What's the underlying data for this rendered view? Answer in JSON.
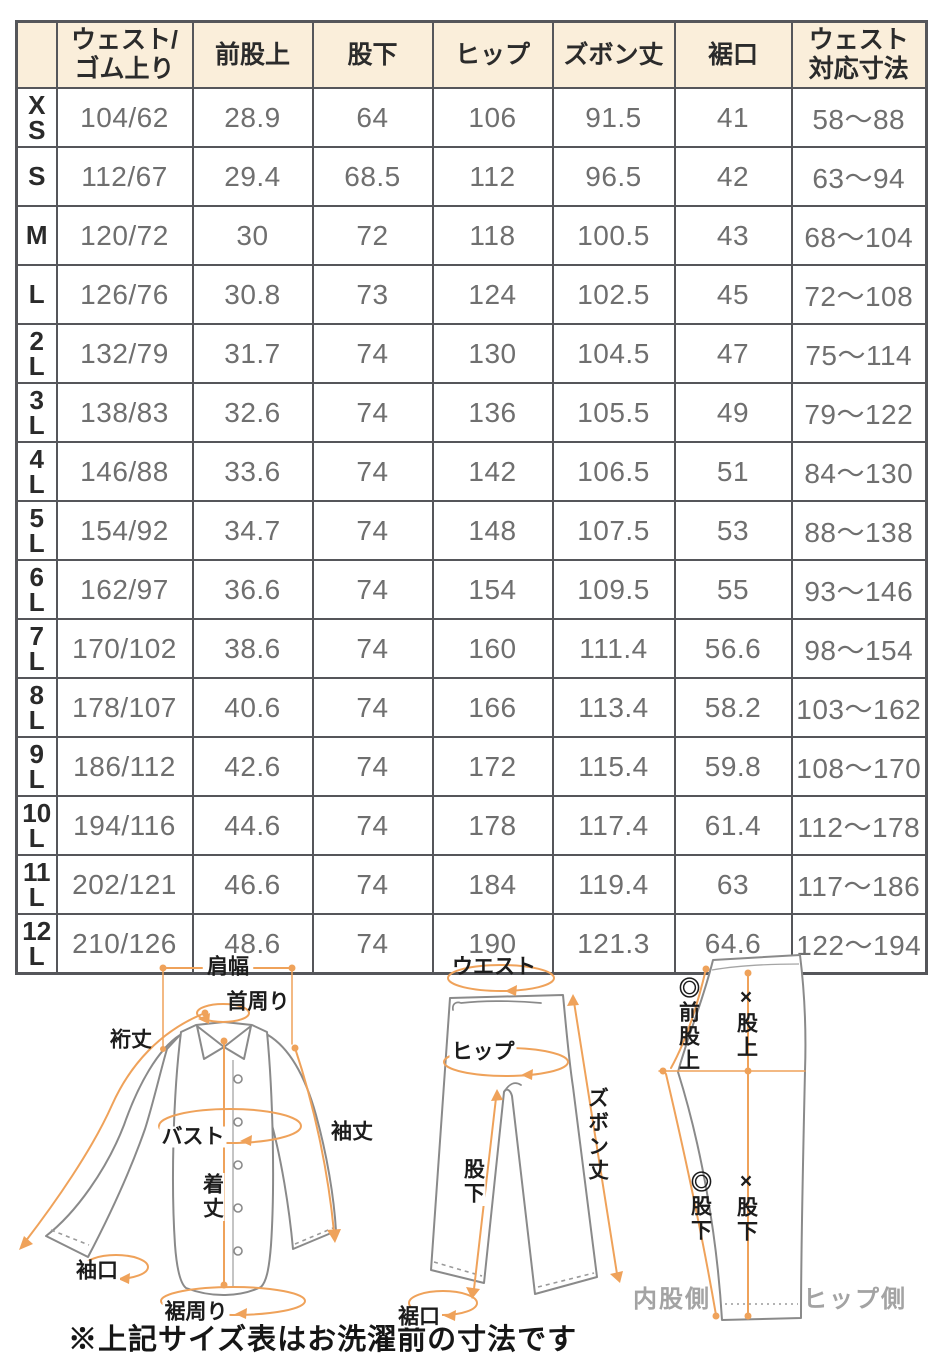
{
  "colors": {
    "header_bg": "#faeeda",
    "table_border": "#55565a",
    "value_text": "#6f6f6f",
    "label_text": "#2b2b2b",
    "accent_orange": "#efa25a",
    "garment_outline": "#8a8a8a",
    "muted_text": "#a3a3a3"
  },
  "size_table": {
    "columns": [
      "",
      "ウェスト/\nゴム上り",
      "前股上",
      "股下",
      "ヒップ",
      "ズボン丈",
      "裾口",
      "ウェスト\n対応寸法"
    ],
    "rows": [
      {
        "size": "XS",
        "values": [
          "104/62",
          "28.9",
          "64",
          "106",
          "91.5",
          "41",
          "58〜88"
        ]
      },
      {
        "size": "S",
        "values": [
          "112/67",
          "29.4",
          "68.5",
          "112",
          "96.5",
          "42",
          "63〜94"
        ]
      },
      {
        "size": "M",
        "values": [
          "120/72",
          "30",
          "72",
          "118",
          "100.5",
          "43",
          "68〜104"
        ]
      },
      {
        "size": "L",
        "values": [
          "126/76",
          "30.8",
          "73",
          "124",
          "102.5",
          "45",
          "72〜108"
        ]
      },
      {
        "size": "2L",
        "values": [
          "132/79",
          "31.7",
          "74",
          "130",
          "104.5",
          "47",
          "75〜114"
        ]
      },
      {
        "size": "3L",
        "values": [
          "138/83",
          "32.6",
          "74",
          "136",
          "105.5",
          "49",
          "79〜122"
        ]
      },
      {
        "size": "4L",
        "values": [
          "146/88",
          "33.6",
          "74",
          "142",
          "106.5",
          "51",
          "84〜130"
        ]
      },
      {
        "size": "5L",
        "values": [
          "154/92",
          "34.7",
          "74",
          "148",
          "107.5",
          "53",
          "88〜138"
        ]
      },
      {
        "size": "6L",
        "values": [
          "162/97",
          "36.6",
          "74",
          "154",
          "109.5",
          "55",
          "93〜146"
        ]
      },
      {
        "size": "7L",
        "values": [
          "170/102",
          "38.6",
          "74",
          "160",
          "111.4",
          "56.6",
          "98〜154"
        ]
      },
      {
        "size": "8L",
        "values": [
          "178/107",
          "40.6",
          "74",
          "166",
          "113.4",
          "58.2",
          "103〜162"
        ]
      },
      {
        "size": "9L",
        "values": [
          "186/112",
          "42.6",
          "74",
          "172",
          "115.4",
          "59.8",
          "108〜170"
        ]
      },
      {
        "size": "10L",
        "values": [
          "194/116",
          "44.6",
          "74",
          "178",
          "117.4",
          "61.4",
          "112〜178"
        ]
      },
      {
        "size": "11L",
        "values": [
          "202/121",
          "46.6",
          "74",
          "184",
          "119.4",
          "63",
          "117〜186"
        ]
      },
      {
        "size": "12L",
        "values": [
          "210/126",
          "48.6",
          "74",
          "190",
          "121.3",
          "64.6",
          "122〜194"
        ]
      }
    ]
  },
  "diagrams": {
    "shirt": {
      "shoulder_width": "肩幅",
      "neck": "首周り",
      "yuki_length": "裄丈",
      "sleeve_length": "袖丈",
      "bust": "バスト",
      "body_length": "着丈",
      "cuff": "袖口",
      "hem_around": "裾周り"
    },
    "pants_front": {
      "waist": "ウエスト",
      "hip": "ヒップ",
      "pants_length": "ズボン丈",
      "inseam": "股下",
      "hem_opening": "裾口"
    },
    "pants_side": {
      "front_rise": "◎前股上",
      "rise": "×股上",
      "inseam_front": "◎股下",
      "inseam_back": "×股下",
      "inner_leg_side": "内股側",
      "hip_side": "ヒップ側"
    }
  },
  "note": "※上記サイズ表はお洗濯前の寸法です"
}
